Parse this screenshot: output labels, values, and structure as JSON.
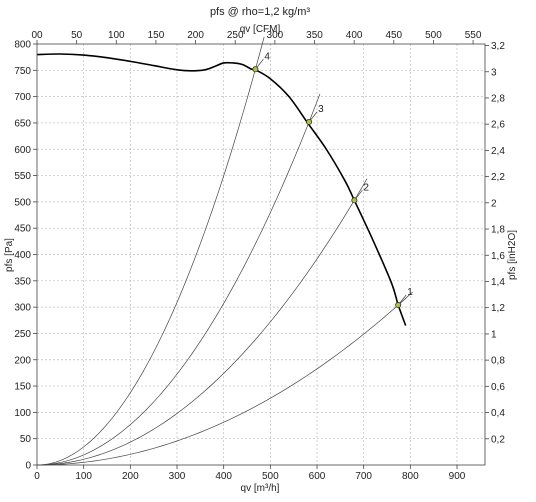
{
  "chart_data": {
    "type": "line",
    "title": "pfs @ rho=1,2 kg/m³",
    "xlabel": "qv [m³/h]",
    "ylabel": "pfs [Pa]",
    "x2label": "qv [CFM]",
    "y2label": "pfs [inH2O]",
    "xlim": [
      0,
      960
    ],
    "ylim": [
      0,
      800
    ],
    "x_ticks": [
      0,
      100,
      200,
      300,
      400,
      500,
      600,
      700,
      800,
      900
    ],
    "y_ticks": [
      0,
      50,
      100,
      150,
      200,
      250,
      300,
      350,
      400,
      450,
      500,
      550,
      600,
      650,
      700,
      750,
      800
    ],
    "x2_ticks": [
      0,
      50,
      100,
      150,
      200,
      250,
      300,
      350,
      400,
      450,
      500,
      550
    ],
    "x2_tick_labels": [
      "00",
      "50",
      "100",
      "150",
      "200",
      "250",
      "300",
      "350",
      "400",
      "450",
      "500",
      "550"
    ],
    "y2_ticks": [
      0.2,
      0.4,
      0.6,
      0.8,
      1,
      1.2,
      1.4,
      1.6,
      1.8,
      2,
      2.2,
      2.4,
      2.6,
      2.8,
      3,
      3.2
    ],
    "y2_tick_labels": [
      "0,2",
      "0,4",
      "0,6",
      "0,8",
      "1",
      "1,2",
      "1,4",
      "1,6",
      "1,8",
      "2",
      "2,2",
      "2,4",
      "2,6",
      "2,8",
      "3",
      "3,2"
    ],
    "grid": true,
    "series": [
      {
        "role": "fan",
        "x": [
          0,
          50,
          100,
          150,
          200,
          250,
          300,
          330,
          360,
          380,
          400,
          420,
          440,
          460,
          470,
          500,
          540,
          580,
          620,
          660,
          680,
          720,
          760,
          774,
          790
        ],
        "y": [
          780,
          781,
          779,
          774,
          767,
          759,
          751,
          749,
          751,
          757,
          764,
          764,
          761,
          752,
          750,
          734,
          700,
          650,
          600,
          540,
          503,
          427,
          345,
          304,
          265
        ]
      }
    ],
    "system_curves": [
      {
        "label": "1",
        "x": 774,
        "y": 304
      },
      {
        "label": "2",
        "x": 680,
        "y": 503
      },
      {
        "label": "3",
        "x": 583,
        "y": 652
      },
      {
        "label": "4",
        "x": 468,
        "y": 752
      }
    ]
  }
}
